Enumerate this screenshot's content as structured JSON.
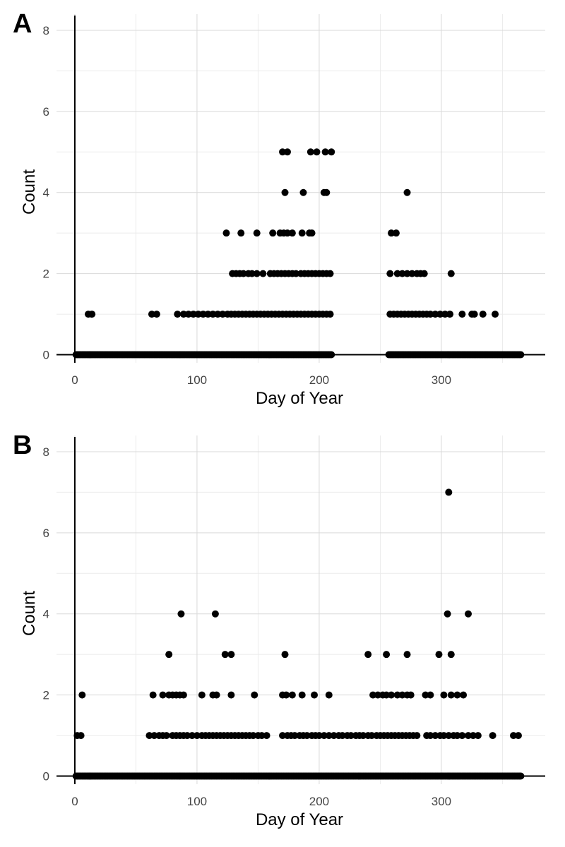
{
  "chart_data": [
    {
      "type": "scatter",
      "panel_label": "A",
      "xlabel": "Day of Year",
      "ylabel": "Count",
      "xlim": [
        -15,
        385
      ],
      "ylim": [
        -0.2,
        8.4
      ],
      "xticks": [
        0,
        100,
        200,
        300
      ],
      "yticks": [
        0,
        2,
        4,
        6,
        8
      ],
      "grid": true,
      "point_color": "#000000",
      "zero_days": [
        [
          1,
          210
        ],
        [
          257,
          365
        ]
      ],
      "points": [
        [
          11,
          1
        ],
        [
          14,
          1
        ],
        [
          63,
          1
        ],
        [
          67,
          1
        ],
        [
          84,
          1
        ],
        [
          89,
          1
        ],
        [
          93,
          1
        ],
        [
          97,
          1
        ],
        [
          101,
          1
        ],
        [
          105,
          1
        ],
        [
          109,
          1
        ],
        [
          113,
          1
        ],
        [
          117,
          1
        ],
        [
          121,
          1
        ],
        [
          125,
          1
        ],
        [
          128,
          1
        ],
        [
          131,
          1
        ],
        [
          134,
          1
        ],
        [
          137,
          1
        ],
        [
          140,
          1
        ],
        [
          143,
          1
        ],
        [
          146,
          1
        ],
        [
          149,
          1
        ],
        [
          152,
          1
        ],
        [
          155,
          1
        ],
        [
          158,
          1
        ],
        [
          161,
          1
        ],
        [
          164,
          1
        ],
        [
          167,
          1
        ],
        [
          170,
          1
        ],
        [
          173,
          1
        ],
        [
          176,
          1
        ],
        [
          179,
          1
        ],
        [
          182,
          1
        ],
        [
          185,
          1
        ],
        [
          188,
          1
        ],
        [
          191,
          1
        ],
        [
          194,
          1
        ],
        [
          197,
          1
        ],
        [
          200,
          1
        ],
        [
          203,
          1
        ],
        [
          206,
          1
        ],
        [
          209,
          1
        ],
        [
          129,
          2
        ],
        [
          132,
          2
        ],
        [
          135,
          2
        ],
        [
          138,
          2
        ],
        [
          142,
          2
        ],
        [
          145,
          2
        ],
        [
          149,
          2
        ],
        [
          154,
          2
        ],
        [
          160,
          2
        ],
        [
          163,
          2
        ],
        [
          166,
          2
        ],
        [
          169,
          2
        ],
        [
          172,
          2
        ],
        [
          175,
          2
        ],
        [
          178,
          2
        ],
        [
          181,
          2
        ],
        [
          185,
          2
        ],
        [
          188,
          2
        ],
        [
          191,
          2
        ],
        [
          194,
          2
        ],
        [
          197,
          2
        ],
        [
          200,
          2
        ],
        [
          203,
          2
        ],
        [
          206,
          2
        ],
        [
          209,
          2
        ],
        [
          124,
          3
        ],
        [
          136,
          3
        ],
        [
          149,
          3
        ],
        [
          162,
          3
        ],
        [
          168,
          3
        ],
        [
          171,
          3
        ],
        [
          174,
          3
        ],
        [
          178,
          3
        ],
        [
          186,
          3
        ],
        [
          192,
          3
        ],
        [
          194,
          3
        ],
        [
          172,
          4
        ],
        [
          187,
          4
        ],
        [
          204,
          4
        ],
        [
          206,
          4
        ],
        [
          170,
          5
        ],
        [
          174,
          5
        ],
        [
          193,
          5
        ],
        [
          198,
          5
        ],
        [
          205,
          5
        ],
        [
          210,
          5
        ],
        [
          258,
          1
        ],
        [
          261,
          1
        ],
        [
          264,
          1
        ],
        [
          267,
          1
        ],
        [
          270,
          1
        ],
        [
          273,
          1
        ],
        [
          276,
          1
        ],
        [
          279,
          1
        ],
        [
          282,
          1
        ],
        [
          285,
          1
        ],
        [
          288,
          1
        ],
        [
          291,
          1
        ],
        [
          295,
          1
        ],
        [
          299,
          1
        ],
        [
          303,
          1
        ],
        [
          307,
          1
        ],
        [
          317,
          1
        ],
        [
          325,
          1
        ],
        [
          327,
          1
        ],
        [
          334,
          1
        ],
        [
          344,
          1
        ],
        [
          258,
          2
        ],
        [
          264,
          2
        ],
        [
          268,
          2
        ],
        [
          272,
          2
        ],
        [
          276,
          2
        ],
        [
          280,
          2
        ],
        [
          283,
          2
        ],
        [
          286,
          2
        ],
        [
          308,
          2
        ],
        [
          259,
          3
        ],
        [
          263,
          3
        ],
        [
          272,
          4
        ]
      ]
    },
    {
      "type": "scatter",
      "panel_label": "B",
      "xlabel": "Day of Year",
      "ylabel": "Count",
      "xlim": [
        -15,
        385
      ],
      "ylim": [
        -0.2,
        8.4
      ],
      "xticks": [
        0,
        100,
        200,
        300
      ],
      "yticks": [
        0,
        2,
        4,
        6,
        8
      ],
      "grid": true,
      "point_color": "#000000",
      "zero_days": [
        [
          1,
          365
        ]
      ],
      "points": [
        [
          2,
          1
        ],
        [
          5,
          1
        ],
        [
          6,
          2
        ],
        [
          61,
          1
        ],
        [
          65,
          1
        ],
        [
          69,
          1
        ],
        [
          72,
          1
        ],
        [
          75,
          1
        ],
        [
          80,
          1
        ],
        [
          83,
          1
        ],
        [
          86,
          1
        ],
        [
          89,
          1
        ],
        [
          92,
          1
        ],
        [
          96,
          1
        ],
        [
          100,
          1
        ],
        [
          104,
          1
        ],
        [
          107,
          1
        ],
        [
          110,
          1
        ],
        [
          113,
          1
        ],
        [
          116,
          1
        ],
        [
          119,
          1
        ],
        [
          122,
          1
        ],
        [
          125,
          1
        ],
        [
          128,
          1
        ],
        [
          131,
          1
        ],
        [
          134,
          1
        ],
        [
          137,
          1
        ],
        [
          140,
          1
        ],
        [
          143,
          1
        ],
        [
          146,
          1
        ],
        [
          150,
          1
        ],
        [
          153,
          1
        ],
        [
          157,
          1
        ],
        [
          170,
          1
        ],
        [
          174,
          1
        ],
        [
          177,
          1
        ],
        [
          180,
          1
        ],
        [
          184,
          1
        ],
        [
          187,
          1
        ],
        [
          190,
          1
        ],
        [
          194,
          1
        ],
        [
          197,
          1
        ],
        [
          200,
          1
        ],
        [
          204,
          1
        ],
        [
          208,
          1
        ],
        [
          212,
          1
        ],
        [
          216,
          1
        ],
        [
          219,
          1
        ],
        [
          223,
          1
        ],
        [
          226,
          1
        ],
        [
          230,
          1
        ],
        [
          233,
          1
        ],
        [
          236,
          1
        ],
        [
          240,
          1
        ],
        [
          243,
          1
        ],
        [
          247,
          1
        ],
        [
          250,
          1
        ],
        [
          253,
          1
        ],
        [
          256,
          1
        ],
        [
          259,
          1
        ],
        [
          262,
          1
        ],
        [
          265,
          1
        ],
        [
          268,
          1
        ],
        [
          271,
          1
        ],
        [
          274,
          1
        ],
        [
          277,
          1
        ],
        [
          280,
          1
        ],
        [
          288,
          1
        ],
        [
          291,
          1
        ],
        [
          295,
          1
        ],
        [
          299,
          1
        ],
        [
          302,
          1
        ],
        [
          306,
          1
        ],
        [
          310,
          1
        ],
        [
          313,
          1
        ],
        [
          317,
          1
        ],
        [
          322,
          1
        ],
        [
          326,
          1
        ],
        [
          330,
          1
        ],
        [
          342,
          1
        ],
        [
          359,
          1
        ],
        [
          363,
          1
        ],
        [
          64,
          2
        ],
        [
          72,
          2
        ],
        [
          77,
          2
        ],
        [
          80,
          2
        ],
        [
          83,
          2
        ],
        [
          86,
          2
        ],
        [
          89,
          2
        ],
        [
          104,
          2
        ],
        [
          113,
          2
        ],
        [
          116,
          2
        ],
        [
          128,
          2
        ],
        [
          147,
          2
        ],
        [
          170,
          2
        ],
        [
          173,
          2
        ],
        [
          178,
          2
        ],
        [
          186,
          2
        ],
        [
          196,
          2
        ],
        [
          208,
          2
        ],
        [
          244,
          2
        ],
        [
          248,
          2
        ],
        [
          252,
          2
        ],
        [
          255,
          2
        ],
        [
          259,
          2
        ],
        [
          264,
          2
        ],
        [
          268,
          2
        ],
        [
          272,
          2
        ],
        [
          275,
          2
        ],
        [
          287,
          2
        ],
        [
          291,
          2
        ],
        [
          302,
          2
        ],
        [
          308,
          2
        ],
        [
          313,
          2
        ],
        [
          318,
          2
        ],
        [
          77,
          3
        ],
        [
          123,
          3
        ],
        [
          128,
          3
        ],
        [
          172,
          3
        ],
        [
          240,
          3
        ],
        [
          255,
          3
        ],
        [
          272,
          3
        ],
        [
          298,
          3
        ],
        [
          308,
          3
        ],
        [
          87,
          4
        ],
        [
          115,
          4
        ],
        [
          305,
          4
        ],
        [
          322,
          4
        ],
        [
          306,
          7
        ]
      ]
    }
  ]
}
